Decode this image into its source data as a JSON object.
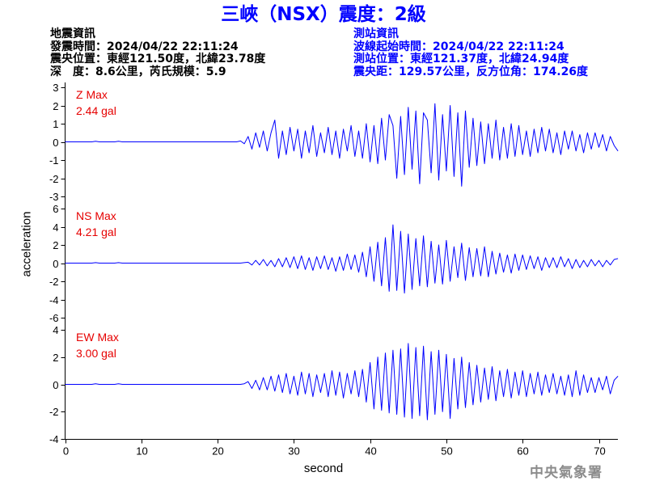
{
  "title": "三峽（NSX）震度：2級",
  "earthquake_info": {
    "heading": "地震資訊",
    "origin_time": "發震時間：2024/04/22 22:11:24",
    "epicenter": "震央位置：東經121.50度，北緯23.78度",
    "depth_magnitude": "深　度：8.6公里，芮氏規模：5.9"
  },
  "station_info": {
    "heading": "測站資訊",
    "record_start": "波線起始時間：2024/04/22 22:11:24",
    "location": "測站位置：東經121.37度，北緯24.94度",
    "distance_azimuth": "震央距：129.57公里，反方位角：174.26度"
  },
  "watermark": "中央氣象署",
  "colors": {
    "title": "#0000ff",
    "station_info": "#0000ff",
    "trace": "#0000ff",
    "panel_label": "#e60000",
    "watermark": "#8c8c8c"
  },
  "chart_data": {
    "type": "line",
    "xlabel": "second",
    "ylabel": "acceleration",
    "xlim": [
      0,
      72.5
    ],
    "xticks": [
      0,
      10,
      20,
      30,
      40,
      50,
      60,
      70
    ],
    "grid": false,
    "legend": "none",
    "x": [
      0,
      0.5,
      1,
      1.5,
      2,
      2.5,
      3,
      3.5,
      4,
      4.5,
      5,
      5.5,
      6,
      6.5,
      7,
      7.5,
      8,
      8.5,
      9,
      9.5,
      10,
      10.5,
      11,
      11.5,
      12,
      12.5,
      13,
      13.5,
      14,
      14.5,
      15,
      15.5,
      16,
      16.5,
      17,
      17.5,
      18,
      18.5,
      19,
      19.5,
      20,
      20.5,
      21,
      21.5,
      22,
      22.5,
      23,
      23.5,
      24,
      24.5,
      25,
      25.5,
      26,
      26.5,
      27,
      27.5,
      28,
      28.5,
      29,
      29.5,
      30,
      30.5,
      31,
      31.5,
      32,
      32.5,
      33,
      33.5,
      34,
      34.5,
      35,
      35.5,
      36,
      36.5,
      37,
      37.5,
      38,
      38.5,
      39,
      39.5,
      40,
      40.5,
      41,
      41.5,
      42,
      42.5,
      43,
      43.5,
      44,
      44.5,
      45,
      45.5,
      46,
      46.5,
      47,
      47.5,
      48,
      48.5,
      49,
      49.5,
      50,
      50.5,
      51,
      51.5,
      52,
      52.5,
      53,
      53.5,
      54,
      54.5,
      55,
      55.5,
      56,
      56.5,
      57,
      57.5,
      58,
      58.5,
      59,
      59.5,
      60,
      60.5,
      61,
      61.5,
      62,
      62.5,
      63,
      63.5,
      64,
      64.5,
      65,
      65.5,
      66,
      66.5,
      67,
      67.5,
      68,
      68.5,
      69,
      69.5,
      70,
      70.5,
      71,
      71.5,
      72,
      72.5
    ],
    "panels": [
      {
        "label": "Z Max",
        "max_value": "2.44 gal",
        "ylim": [
          -3,
          3
        ],
        "yticks": [
          3,
          2,
          1,
          0,
          -1,
          -2,
          -3
        ],
        "values": [
          0,
          0,
          0,
          0,
          0,
          0,
          0,
          0,
          0.03,
          0,
          0,
          0,
          0,
          0,
          0.03,
          0,
          0,
          0,
          0,
          0,
          0,
          0,
          0,
          0,
          0,
          0,
          0,
          0,
          0,
          0,
          0,
          0,
          0,
          0,
          0,
          0,
          0,
          0,
          0,
          0,
          0,
          0,
          0,
          0,
          0,
          0,
          0.05,
          -0.1,
          0.3,
          -0.4,
          0.5,
          -0.3,
          0.6,
          -0.5,
          0.5,
          1.2,
          -0.9,
          0.6,
          -0.7,
          0.8,
          -0.5,
          0.7,
          -0.9,
          0.6,
          -0.6,
          0.9,
          -0.8,
          0.5,
          -0.6,
          0.8,
          -0.7,
          0.6,
          -0.9,
          0.7,
          -0.5,
          0.9,
          -0.8,
          0.6,
          -0.9,
          1.0,
          -1.1,
          0.9,
          -1.2,
          1.3,
          -1.0,
          1.5,
          0.9,
          -2.0,
          1.4,
          -1.8,
          1.9,
          -1.5,
          1.7,
          -2.3,
          1.6,
          1.2,
          -1.7,
          2.1,
          -2.1,
          1.5,
          -1.6,
          2.0,
          -1.9,
          1.6,
          -2.44,
          1.7,
          -1.4,
          1.3,
          -1.3,
          1.1,
          -1.2,
          1.0,
          -0.9,
          1.2,
          -1.0,
          0.8,
          -0.9,
          1.0,
          -0.8,
          0.9,
          -0.7,
          0.6,
          -0.8,
          0.7,
          -0.6,
          0.8,
          -0.5,
          0.7,
          -0.6,
          0.5,
          -0.7,
          0.6,
          -0.4,
          0.6,
          -0.5,
          0.4,
          -0.6,
          0.5,
          -0.4,
          0.5,
          -0.3,
          0.4,
          -0.5,
          0.3,
          -0.2,
          -0.5
        ]
      },
      {
        "label": "NS Max",
        "max_value": "4.21 gal",
        "ylim": [
          -6,
          6
        ],
        "yticks": [
          6,
          4,
          2,
          0,
          -2,
          -4,
          -6
        ],
        "values": [
          0,
          0,
          0,
          0,
          0,
          0,
          0,
          0,
          0.05,
          0,
          0,
          0,
          0,
          0,
          0.05,
          0,
          0,
          0,
          0,
          0,
          0,
          0,
          0,
          0,
          0,
          0,
          0,
          0,
          0,
          0,
          0,
          0,
          0,
          0,
          0,
          0,
          0,
          0,
          0,
          0,
          0,
          0,
          0,
          0,
          0,
          0,
          0,
          0.05,
          0.1,
          -0.2,
          0.3,
          -0.2,
          0.4,
          -0.3,
          0.3,
          -0.4,
          0.5,
          -0.4,
          0.6,
          -0.5,
          0.7,
          -0.6,
          0.8,
          -0.7,
          0.6,
          -0.8,
          0.7,
          -0.6,
          0.8,
          -0.7,
          0.6,
          -0.9,
          0.7,
          -0.8,
          1.0,
          -0.7,
          0.9,
          -1.0,
          1.2,
          -1.5,
          1.8,
          -2.0,
          2.3,
          -2.5,
          2.8,
          -3.1,
          4.21,
          -3.0,
          3.5,
          -3.3,
          3.2,
          -2.9,
          2.7,
          -2.5,
          3.0,
          -2.6,
          2.4,
          -2.2,
          2.0,
          -2.3,
          2.5,
          -2.0,
          1.8,
          -1.6,
          2.2,
          -1.9,
          1.7,
          -1.5,
          1.6,
          -1.4,
          1.8,
          -1.5,
          1.3,
          -1.2,
          1.1,
          -1.0,
          0.9,
          -1.1,
          1.0,
          -0.8,
          0.9,
          -0.7,
          0.8,
          -0.6,
          0.7,
          -0.8,
          0.6,
          -0.5,
          0.6,
          -0.5,
          0.7,
          -0.4,
          0.5,
          -0.6,
          0.4,
          -0.5,
          0.3,
          -0.4,
          0.4,
          -0.3,
          0.3,
          -0.4,
          0.3,
          -0.2,
          0.4,
          0.5
        ]
      },
      {
        "label": "EW Max",
        "max_value": "3.00 gal",
        "ylim": [
          -4,
          4
        ],
        "yticks": [
          4,
          2,
          0,
          -2,
          -4
        ],
        "values": [
          0,
          0,
          0,
          0,
          0,
          0,
          0,
          0,
          0.05,
          0,
          0,
          0,
          0,
          0,
          0.05,
          0,
          0,
          0,
          0,
          0,
          0,
          0,
          0,
          0,
          0,
          0,
          0,
          0,
          0,
          0,
          0,
          0,
          0,
          0,
          0,
          0,
          0,
          0,
          0,
          0,
          0,
          0,
          0,
          0,
          0,
          0,
          0,
          0.05,
          0.2,
          -0.3,
          0.3,
          -0.4,
          0.5,
          -0.4,
          0.6,
          -0.5,
          0.7,
          -0.6,
          0.8,
          -0.7,
          0.6,
          -0.8,
          0.9,
          -0.7,
          0.8,
          -0.9,
          0.7,
          -0.6,
          0.8,
          -0.9,
          1.0,
          -0.8,
          0.9,
          -1.0,
          0.8,
          -0.7,
          1.0,
          -0.9,
          1.1,
          -1.3,
          1.6,
          -1.8,
          2.0,
          -1.9,
          2.3,
          -2.1,
          2.5,
          -2.2,
          2.6,
          -2.4,
          3.0,
          -2.5,
          2.7,
          -2.3,
          2.8,
          -2.6,
          2.4,
          -2.2,
          2.5,
          -2.0,
          2.2,
          -2.5,
          1.9,
          -1.8,
          2.0,
          -1.7,
          1.6,
          -1.5,
          1.4,
          -1.3,
          1.2,
          -1.1,
          1.3,
          -1.2,
          1.0,
          -0.9,
          1.1,
          -1.0,
          0.9,
          -0.8,
          1.0,
          -0.9,
          0.8,
          -0.7,
          0.9,
          -0.8,
          0.7,
          -0.6,
          0.8,
          -0.7,
          0.6,
          -0.8,
          0.7,
          -0.9,
          1.0,
          -0.8,
          0.7,
          -0.6,
          0.5,
          -0.6,
          0.5,
          -0.4,
          0.6,
          -0.7,
          0.3,
          0.6
        ]
      }
    ]
  }
}
